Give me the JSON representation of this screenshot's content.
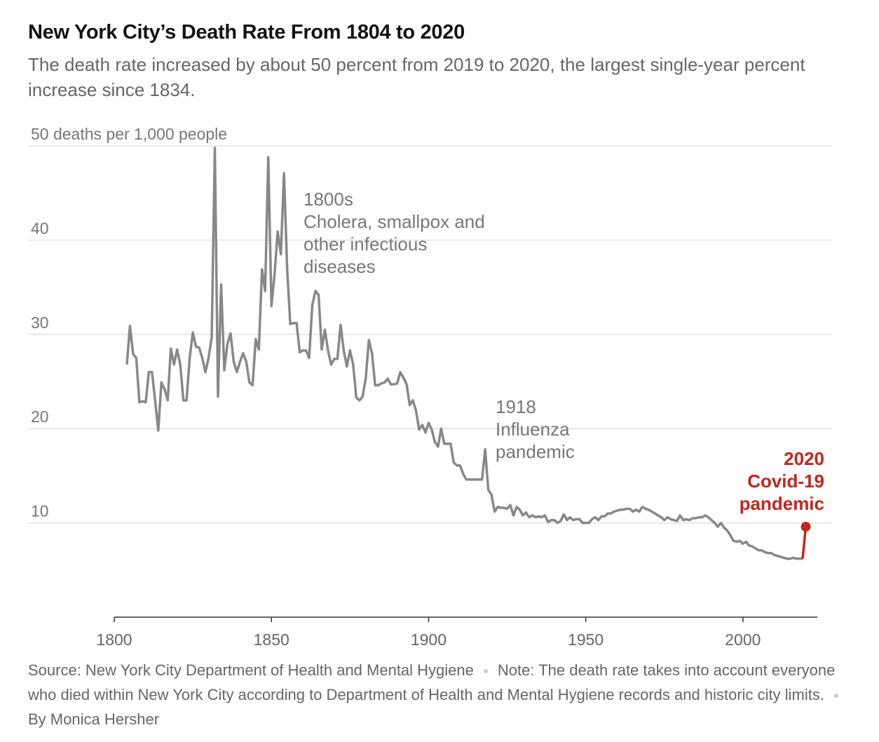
{
  "title": "New York City’s Death Rate From 1804 to 2020",
  "subtitle": "The death rate increased by about 50 percent from 2019 to 2020, the largest single-year percent increase since 1834.",
  "footer": {
    "source": "Source: New York City Department of Health and Mental Hygiene",
    "note": "Note: The death rate takes into account everyone who died within New York City according to Department of Health and Mental Hygiene records and historic city limits.",
    "byline": "By Monica Hersher"
  },
  "chart_data": {
    "type": "line",
    "x": [
      1804,
      1805,
      1806,
      1807,
      1808,
      1809,
      1810,
      1811,
      1812,
      1813,
      1814,
      1815,
      1816,
      1817,
      1818,
      1819,
      1820,
      1821,
      1822,
      1823,
      1824,
      1825,
      1826,
      1827,
      1828,
      1829,
      1830,
      1831,
      1832,
      1833,
      1834,
      1835,
      1836,
      1837,
      1838,
      1839,
      1840,
      1841,
      1842,
      1843,
      1844,
      1845,
      1846,
      1847,
      1848,
      1849,
      1850,
      1851,
      1852,
      1853,
      1854,
      1855,
      1856,
      1857,
      1858,
      1859,
      1860,
      1861,
      1862,
      1863,
      1864,
      1865,
      1866,
      1867,
      1868,
      1869,
      1870,
      1871,
      1872,
      1873,
      1874,
      1875,
      1876,
      1877,
      1878,
      1879,
      1880,
      1881,
      1882,
      1883,
      1884,
      1885,
      1886,
      1887,
      1888,
      1889,
      1890,
      1891,
      1892,
      1893,
      1894,
      1895,
      1896,
      1897,
      1898,
      1899,
      1900,
      1901,
      1902,
      1903,
      1904,
      1905,
      1906,
      1907,
      1908,
      1909,
      1910,
      1911,
      1912,
      1913,
      1914,
      1915,
      1916,
      1917,
      1918,
      1919,
      1920,
      1921,
      1922,
      1923,
      1924,
      1925,
      1926,
      1927,
      1928,
      1929,
      1930,
      1931,
      1932,
      1933,
      1934,
      1935,
      1936,
      1937,
      1938,
      1939,
      1940,
      1941,
      1942,
      1943,
      1944,
      1945,
      1946,
      1947,
      1948,
      1949,
      1950,
      1951,
      1952,
      1953,
      1954,
      1955,
      1956,
      1957,
      1958,
      1959,
      1960,
      1961,
      1962,
      1963,
      1964,
      1965,
      1966,
      1967,
      1968,
      1969,
      1970,
      1971,
      1972,
      1973,
      1974,
      1975,
      1976,
      1977,
      1978,
      1979,
      1980,
      1981,
      1982,
      1983,
      1984,
      1985,
      1986,
      1987,
      1988,
      1989,
      1990,
      1991,
      1992,
      1993,
      1994,
      1995,
      1996,
      1997,
      1998,
      1999,
      2000,
      2001,
      2002,
      2003,
      2004,
      2005,
      2006,
      2007,
      2008,
      2009,
      2010,
      2011,
      2012,
      2013,
      2014,
      2015,
      2016,
      2017,
      2018,
      2019,
      2020
    ],
    "values": [
      26.8,
      30.9,
      27.9,
      27.5,
      22.8,
      22.9,
      22.8,
      26.0,
      26.0,
      23.0,
      19.8,
      24.9,
      24.2,
      23.0,
      28.5,
      26.8,
      28.4,
      26.8,
      23.0,
      23.0,
      27.5,
      30.2,
      28.7,
      28.6,
      27.5,
      26.0,
      27.5,
      29.7,
      49.8,
      23.4,
      35.3,
      26.2,
      29.0,
      30.1,
      27.1,
      26.0,
      27.1,
      28.0,
      27.1,
      24.9,
      24.6,
      29.5,
      28.4,
      36.9,
      34.6,
      48.8,
      33.0,
      36.4,
      40.9,
      38.5,
      47.1,
      37.0,
      31.1,
      31.2,
      31.2,
      28.1,
      28.3,
      28.3,
      27.5,
      33.1,
      34.6,
      34.2,
      28.4,
      30.5,
      28.3,
      26.8,
      27.4,
      27.4,
      31.0,
      28.3,
      26.6,
      28.3,
      26.8,
      23.3,
      23.0,
      23.4,
      25.3,
      29.4,
      28.0,
      24.6,
      24.6,
      24.8,
      24.9,
      25.3,
      24.7,
      24.7,
      24.8,
      26.0,
      25.4,
      24.7,
      22.5,
      23.0,
      21.9,
      19.9,
      20.4,
      19.6,
      20.6,
      19.9,
      18.6,
      18.1,
      20.0,
      18.4,
      18.4,
      18.4,
      16.4,
      16.1,
      16.1,
      15.2,
      14.6,
      14.6,
      14.6,
      14.6,
      14.6,
      14.6,
      17.8,
      13.5,
      13.0,
      11.2,
      11.7,
      11.6,
      11.6,
      11.5,
      11.9,
      10.8,
      11.7,
      11.4,
      10.8,
      11.1,
      10.6,
      10.8,
      10.6,
      10.7,
      10.6,
      10.8,
      10.1,
      10.3,
      10.3,
      10.0,
      10.2,
      10.9,
      10.3,
      10.6,
      10.3,
      10.4,
      10.4,
      10.0,
      10.0,
      10.0,
      10.4,
      10.6,
      10.3,
      10.7,
      10.7,
      11.0,
      11.0,
      11.2,
      11.3,
      11.4,
      11.4,
      11.5,
      11.5,
      11.2,
      11.4,
      11.2,
      11.7,
      11.5,
      11.4,
      11.2,
      11.0,
      10.8,
      10.6,
      10.3,
      10.6,
      10.4,
      10.3,
      10.2,
      10.8,
      10.3,
      10.4,
      10.3,
      10.5,
      10.5,
      10.6,
      10.6,
      10.8,
      10.6,
      10.3,
      10.0,
      9.6,
      10.0,
      9.5,
      9.2,
      8.7,
      8.1,
      8.0,
      8.1,
      7.8,
      8.0,
      7.6,
      7.5,
      7.3,
      7.1,
      7.1,
      6.9,
      6.8,
      6.8,
      6.6,
      6.5,
      6.4,
      6.3,
      6.2,
      6.2,
      6.3,
      6.2,
      6.2,
      6.2,
      9.6
    ],
    "color": "#888888",
    "highlight_color": "#c2261b",
    "xlim": [
      1800,
      2023
    ],
    "xticks": [
      1800,
      1850,
      1900,
      1950,
      2000
    ],
    "ylim": [
      0,
      50
    ],
    "yticks": [
      10,
      20,
      30,
      40,
      {
        "value": 50,
        "label": "50 deaths per 1,000 people"
      }
    ],
    "grid": true,
    "annotations": [
      {
        "lines": [
          "1800s",
          "Cholera, smallpox and",
          "other infectious",
          "diseases"
        ]
      },
      {
        "lines": [
          "1918",
          "Influenza",
          "pandemic"
        ]
      },
      {
        "lines": [
          "2020",
          "Covid-19",
          "pandemic"
        ]
      }
    ]
  }
}
